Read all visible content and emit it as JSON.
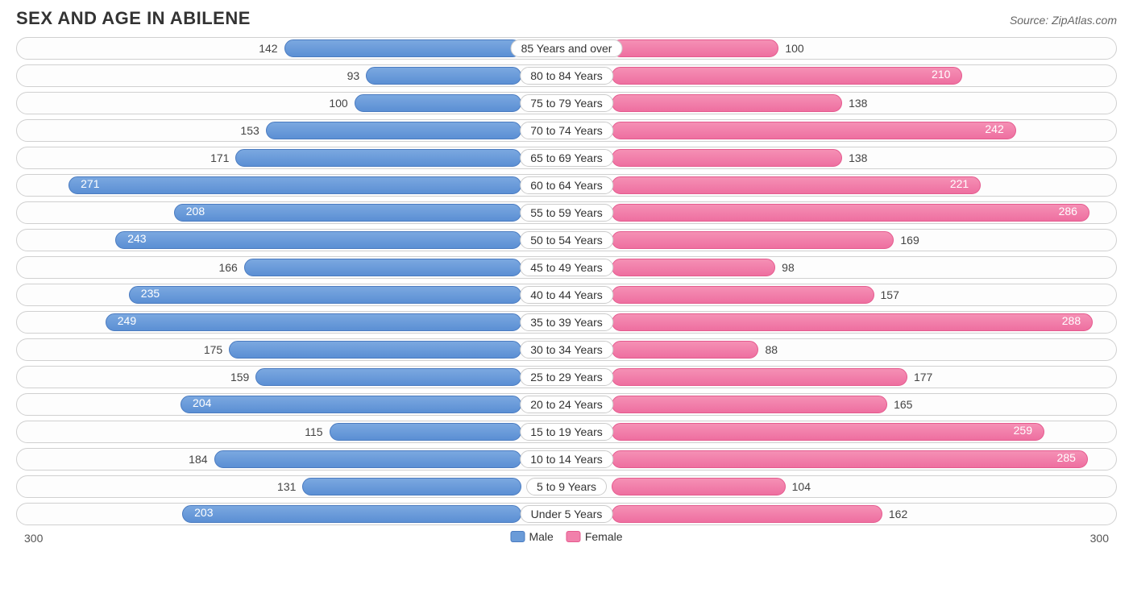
{
  "title": "SEX AND AGE IN ABILENE",
  "source_label": "Source:",
  "source_value": "ZipAtlas.com",
  "chart": {
    "type": "population-pyramid",
    "axis_max": 300,
    "axis_max_label_left": "300",
    "axis_max_label_right": "300",
    "male_color": "#6a9bd8",
    "female_color": "#f180ab",
    "bg_color": "#ffffff",
    "row_border_color": "#d0d0d0",
    "value_inside_threshold": 200,
    "rows": [
      {
        "label": "85 Years and over",
        "male": 142,
        "female": 100
      },
      {
        "label": "80 to 84 Years",
        "male": 93,
        "female": 210
      },
      {
        "label": "75 to 79 Years",
        "male": 100,
        "female": 138
      },
      {
        "label": "70 to 74 Years",
        "male": 153,
        "female": 242
      },
      {
        "label": "65 to 69 Years",
        "male": 171,
        "female": 138
      },
      {
        "label": "60 to 64 Years",
        "male": 271,
        "female": 221
      },
      {
        "label": "55 to 59 Years",
        "male": 208,
        "female": 286
      },
      {
        "label": "50 to 54 Years",
        "male": 243,
        "female": 169
      },
      {
        "label": "45 to 49 Years",
        "male": 166,
        "female": 98
      },
      {
        "label": "40 to 44 Years",
        "male": 235,
        "female": 157
      },
      {
        "label": "35 to 39 Years",
        "male": 249,
        "female": 288
      },
      {
        "label": "30 to 34 Years",
        "male": 175,
        "female": 88
      },
      {
        "label": "25 to 29 Years",
        "male": 159,
        "female": 177
      },
      {
        "label": "20 to 24 Years",
        "male": 204,
        "female": 165
      },
      {
        "label": "15 to 19 Years",
        "male": 115,
        "female": 259
      },
      {
        "label": "10 to 14 Years",
        "male": 184,
        "female": 285
      },
      {
        "label": "5 to 9 Years",
        "male": 131,
        "female": 104
      },
      {
        "label": "Under 5 Years",
        "male": 203,
        "female": 162
      }
    ]
  },
  "legend": {
    "male": "Male",
    "female": "Female"
  }
}
